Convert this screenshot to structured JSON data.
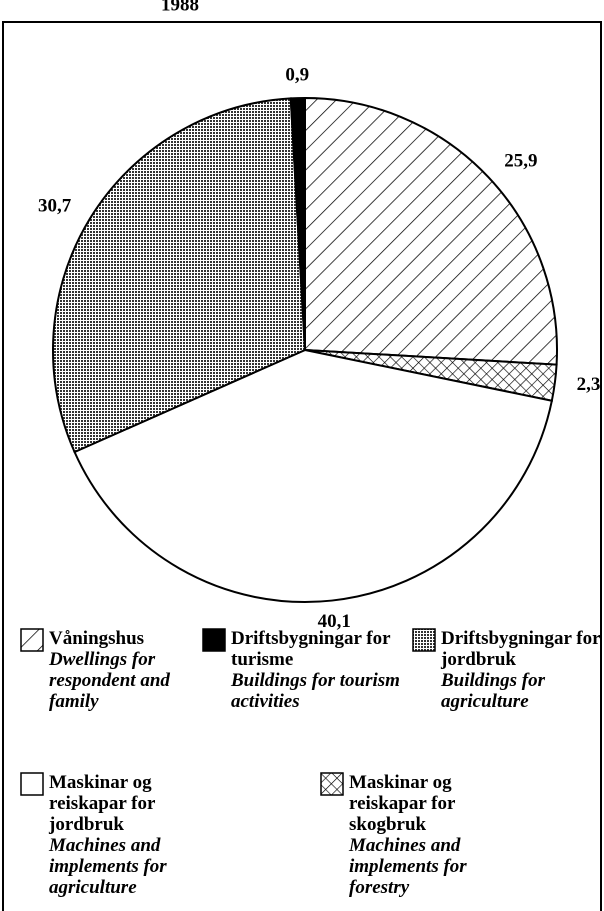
{
  "chart_data": {
    "type": "pie",
    "title": "1988",
    "categories": [
      "Våningshus",
      "Maskinar og reiskapar for skogbruk",
      "Maskinar og reiskapar for jordbruk",
      "Driftsbygningar for jordbruk",
      "Driftsbygningar for turisme"
    ],
    "descriptions": [
      "Dwellings for respondent and family",
      "Machines and implements for forestry",
      "Machines and implements for agriculture",
      "Buildings for agriculture",
      "Buildings for tourism activities"
    ],
    "values": [
      25.9,
      2.3,
      40.1,
      30.7,
      0.9
    ],
    "value_labels": [
      "25,9",
      "2,3",
      "40,1",
      "30,7",
      "0,9"
    ],
    "fills": [
      "hatch",
      "cross",
      "white",
      "dots",
      "black"
    ]
  }
}
